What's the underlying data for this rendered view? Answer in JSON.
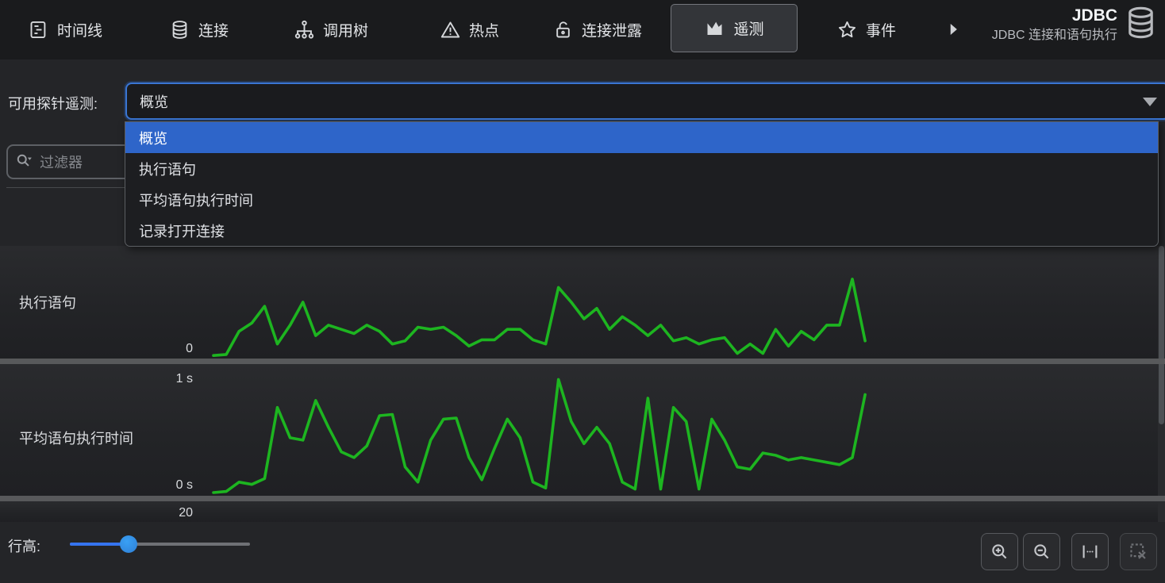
{
  "navbar": {
    "tabs": [
      {
        "label": "时间线",
        "icon": "timeline-icon",
        "selected": false
      },
      {
        "label": "连接",
        "icon": "database-icon",
        "selected": false
      },
      {
        "label": "调用树",
        "icon": "call-tree-icon",
        "selected": false
      },
      {
        "label": "热点",
        "icon": "hotspots-icon",
        "selected": false
      },
      {
        "label": "连接泄露",
        "icon": "connection-leak-icon",
        "selected": false
      },
      {
        "label": "遥测",
        "icon": "telemetry-icon",
        "selected": true
      },
      {
        "label": "事件",
        "icon": "events-icon",
        "selected": false
      }
    ],
    "overflow_icon": "chevron-right-icon",
    "view_title": "JDBC",
    "view_subtitle": "JDBC 连接和语句执行",
    "view_icon": "database-icon-large"
  },
  "probe_selector": {
    "label": "可用探针遥测:",
    "value": "概览",
    "options": [
      "概览",
      "执行语句",
      "平均语句执行时间",
      "记录打开连接"
    ],
    "selected_option": "概览"
  },
  "filter": {
    "placeholder": "过滤器",
    "icon": "search-filter-icon"
  },
  "chart_data": [
    {
      "type": "line",
      "title": "执行语句",
      "ybase_label": "0",
      "ytop_label": "",
      "ylim": [
        0,
        100
      ],
      "grid": "vertical-only, unlabeled time ticks",
      "legend": "none",
      "note": "values are percent of visible row height; only the 0 baseline is labeled",
      "series": [
        {
          "name": "执行语句",
          "color": "#1db520",
          "values": [
            1,
            2,
            24,
            32,
            48,
            12,
            30,
            52,
            20,
            30,
            26,
            22,
            30,
            24,
            12,
            15,
            28,
            26,
            28,
            20,
            10,
            16,
            16,
            26,
            26,
            16,
            12,
            66,
            52,
            36,
            46,
            26,
            38,
            30,
            20,
            30,
            15,
            18,
            12,
            16,
            18,
            3,
            12,
            3,
            26,
            10,
            24,
            16,
            30,
            30,
            74,
            15
          ]
        }
      ]
    },
    {
      "type": "line",
      "title": "平均语句执行时间",
      "ytop_label": "1 s",
      "ybase_label": "0 s",
      "ylim": [
        0,
        1.05
      ],
      "unit": "s",
      "grid": "vertical-only, unlabeled time ticks",
      "legend": "none",
      "series": [
        {
          "name": "平均语句执行时间",
          "color": "#1db520",
          "values": [
            0.01,
            0.02,
            0.1,
            0.08,
            0.13,
            0.74,
            0.48,
            0.46,
            0.8,
            0.57,
            0.36,
            0.31,
            0.41,
            0.67,
            0.68,
            0.23,
            0.1,
            0.46,
            0.64,
            0.65,
            0.31,
            0.12,
            0.39,
            0.64,
            0.48,
            0.1,
            0.05,
            0.98,
            0.62,
            0.43,
            0.57,
            0.43,
            0.1,
            0.04,
            0.82,
            0.04,
            0.74,
            0.62,
            0.04,
            0.64,
            0.46,
            0.23,
            0.21,
            0.35,
            0.33,
            0.29,
            0.31,
            0.29,
            0.27,
            0.25,
            0.31,
            0.85
          ]
        }
      ]
    },
    {
      "type": "line",
      "title": "",
      "ytop_label": "20",
      "series": [],
      "note": "third telemetry row is clipped by the bottom bar; only its top axis label 20 is visible"
    }
  ],
  "bottom_bar": {
    "row_height_label": "行高:",
    "slider_percent": 33,
    "buttons": [
      {
        "name": "zoom-in",
        "icon": "zoom-in-icon",
        "enabled": true
      },
      {
        "name": "zoom-out",
        "icon": "zoom-out-icon",
        "enabled": true
      },
      {
        "name": "fit-width",
        "icon": "fit-width-icon",
        "enabled": true
      },
      {
        "name": "clear-selection",
        "icon": "clear-selection-icon",
        "enabled": false
      }
    ]
  },
  "colors": {
    "accent_blue": "#3574f0",
    "selection_blue": "#2e65c9",
    "chart_green": "#1db520",
    "row_separator": "#58595b",
    "gridline": "#47494b",
    "navbar_bg": "#1a1b1d",
    "content_bg": "#242528"
  }
}
